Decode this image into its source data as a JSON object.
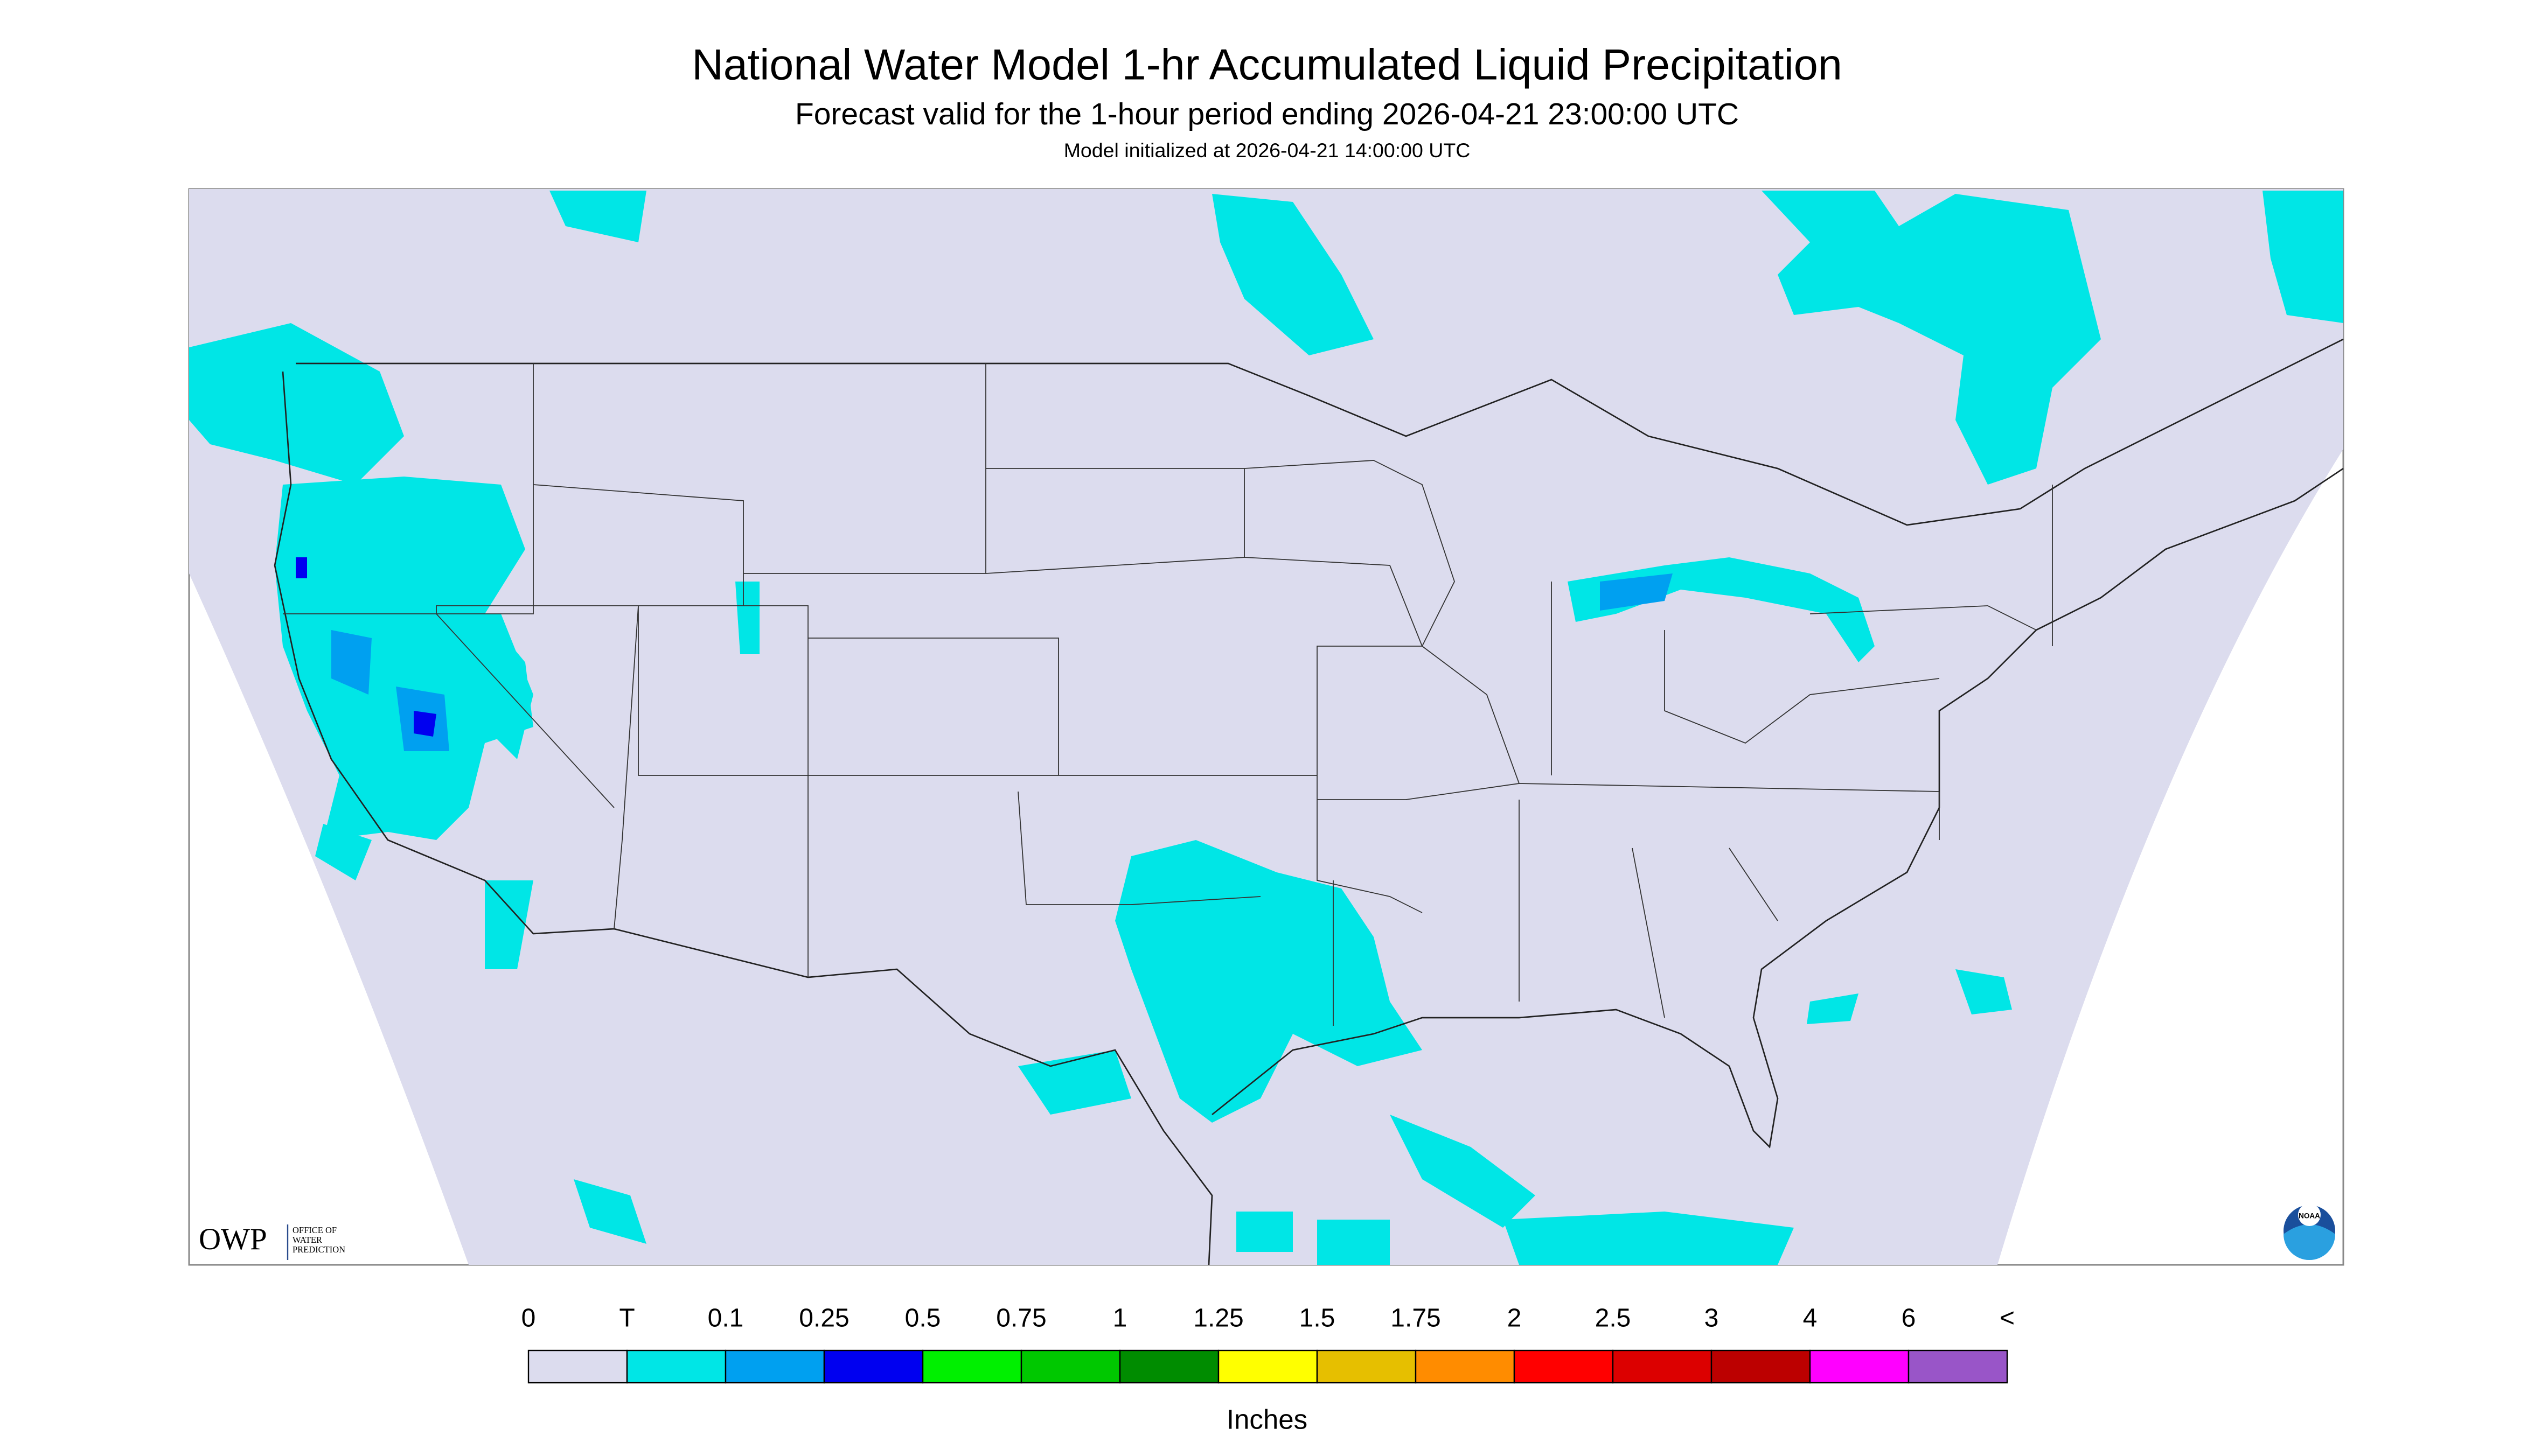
{
  "header": {
    "title": "National Water Model 1-hr Accumulated Liquid Precipitation",
    "subtitle": "Forecast valid for the 1-hour period ending 2026-04-21 23:00:00 UTC",
    "init": "Model initialized at 2026-04-21 14:00:00 UTC"
  },
  "logo": {
    "owp": "OWP",
    "owp_name": [
      "OFFICE OF",
      "WATER",
      "PREDICTION"
    ],
    "noaa": "NOAA"
  },
  "legend": {
    "ticks": [
      "0",
      "T",
      "0.1",
      "0.25",
      "0.5",
      "0.75",
      "1",
      "1.25",
      "1.5",
      "1.75",
      "2",
      "2.5",
      "3",
      "4",
      "6",
      "<"
    ],
    "colors": [
      "#dcdcee",
      "#00e6e6",
      "#00a0f0",
      "#0000f0",
      "#00f000",
      "#00c800",
      "#008c00",
      "#ffff00",
      "#e6bf00",
      "#ff8c00",
      "#ff0000",
      "#dc0000",
      "#bc0000",
      "#ff00ff",
      "#9955c8"
    ],
    "unit": "Inches"
  }
}
